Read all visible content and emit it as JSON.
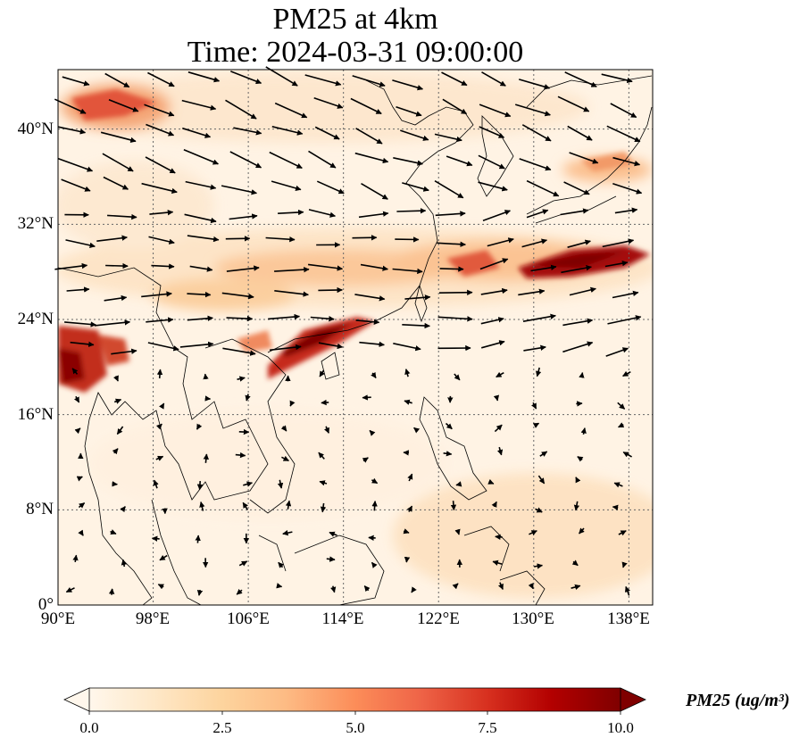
{
  "title_line1": "PM25 at 4km",
  "title_line2": "Time: 2024-03-31 09:00:00",
  "map_extent": {
    "lon_min": 90,
    "lon_max": 140,
    "lat_min": 0,
    "lat_max": 45
  },
  "lat_ticks": [
    "0°",
    "8°N",
    "16°N",
    "24°N",
    "32°N",
    "40°N"
  ],
  "lon_ticks": [
    "90°E",
    "98°E",
    "106°E",
    "114°E",
    "122°E",
    "130°E",
    "138°E"
  ],
  "colorbar": {
    "label": "PM25 (ug/m³)",
    "colormap": "OrRd",
    "ticks": [
      "0.0",
      "2.5",
      "5.0",
      "7.5",
      "10.0"
    ],
    "range": [
      0,
      10
    ],
    "colors": [
      "#fff7ec",
      "#fee8c8",
      "#fdd49e",
      "#fdbb84",
      "#fc8d59",
      "#ef6548",
      "#d7301f",
      "#b30000",
      "#7f0000"
    ]
  },
  "colors": {
    "grid": "#666666",
    "coast": "#000000",
    "arrow": "#000000"
  }
}
